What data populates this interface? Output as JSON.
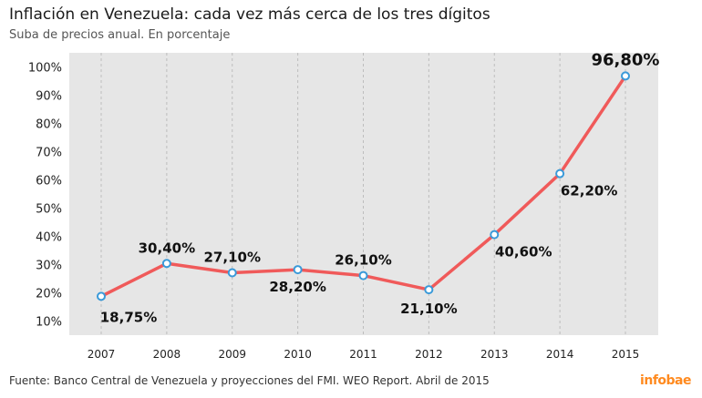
{
  "header": {
    "title": "Inflación en Venezuela: cada vez más cerca de los tres dígitos",
    "subtitle": "Suba de precios anual. En porcentaje"
  },
  "footer": {
    "source": "Fuente: Banco Central de Venezuela y proyecciones del FMI. WEO Report. Abril de 2015",
    "logo": "infobae"
  },
  "colors": {
    "line": "#f05a5a",
    "marker_fill": "#ffffff",
    "marker_stroke": "#3a9ad9",
    "plot_bg": "#e6e6e6",
    "grid": "#bdbdbd"
  },
  "chart_data": {
    "type": "line",
    "categories": [
      "2007",
      "2008",
      "2009",
      "2010",
      "2011",
      "2012",
      "2013",
      "2014",
      "2015"
    ],
    "values": [
      18.75,
      30.4,
      27.1,
      28.2,
      26.1,
      21.1,
      40.6,
      62.2,
      96.8
    ],
    "data_labels": [
      "18,75%",
      "30,40%",
      "27,10%",
      "28,20%",
      "26,10%",
      "21,10%",
      "40,60%",
      "62,20%",
      "96,80%"
    ],
    "label_positions": [
      "below",
      "above",
      "above",
      "below",
      "above",
      "below",
      "below",
      "below",
      "above"
    ],
    "y_ticks": [
      10,
      20,
      30,
      40,
      50,
      60,
      70,
      80,
      90,
      100
    ],
    "y_tick_labels": [
      "10%",
      "20%",
      "30%",
      "40%",
      "50%",
      "60%",
      "70%",
      "80%",
      "90%",
      "100%"
    ],
    "ylim": [
      5,
      105
    ],
    "grid": true,
    "legend": "none",
    "title": "Inflación en Venezuela: cada vez más cerca de los tres dígitos",
    "xlabel": "",
    "ylabel": ""
  }
}
